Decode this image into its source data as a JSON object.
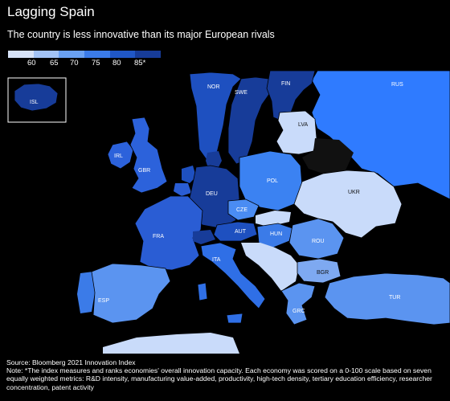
{
  "title": "Lagging Spain",
  "subtitle": "The country is less innovative than its major European rivals",
  "legend": {
    "labels": [
      "60",
      "65",
      "70",
      "75",
      "80",
      "85*"
    ],
    "colors": [
      "#d7e3f8",
      "#a3c3f5",
      "#6aa1f2",
      "#3b7be8",
      "#2057c6",
      "#173c99"
    ]
  },
  "countries": {
    "ISL": {
      "label": "ISL",
      "color": "#173c99"
    },
    "NOR": {
      "label": "NOR",
      "color": "#1e50c0"
    },
    "SWE": {
      "label": "SWE",
      "color": "#173c99"
    },
    "FIN": {
      "label": "FIN",
      "color": "#173c99"
    },
    "RUS": {
      "label": "RUS",
      "color": "#2f7bff"
    },
    "LVA": {
      "label": "LVA",
      "color": "#c9dbfa"
    },
    "IRL": {
      "label": "IRL",
      "color": "#2c62db"
    },
    "GBR": {
      "label": "GBR",
      "color": "#2c62db"
    },
    "POL": {
      "label": "POL",
      "color": "#3b82f2"
    },
    "DEU": {
      "label": "DEU",
      "color": "#173c99"
    },
    "UKR": {
      "label": "UKR",
      "color": "#c9dbfa"
    },
    "CZE": {
      "label": "CZE",
      "color": "#4a8cf3"
    },
    "FRA": {
      "label": "FRA",
      "color": "#2a5dd4"
    },
    "AUT": {
      "label": "AUT",
      "color": "#1e50c0"
    },
    "HUN": {
      "label": "HUN",
      "color": "#3b7be8"
    },
    "ROU": {
      "label": "ROU",
      "color": "#5b94f0"
    },
    "ITA": {
      "label": "ITA",
      "color": "#2f6fe6"
    },
    "BGR": {
      "label": "BGR",
      "color": "#7ea9f1"
    },
    "ESP": {
      "label": "ESP",
      "color": "#5b94f0"
    },
    "TUR": {
      "label": "TUR",
      "color": "#5b94f0"
    },
    "GRC": {
      "label": "GRC",
      "color": "#5b94f0"
    }
  },
  "footer": {
    "source": "Source: Bloomberg 2021 Innovation Index",
    "note": "Note: *The index measures and ranks economies' overall innovation capacity. Each economy was scored on a 0-100 scale based on seven equally weighted metrics: R&D intensity, manufacturing value-added, productivity, high-tech density, tertiary education efficiency, researcher concentration, patent activity"
  }
}
